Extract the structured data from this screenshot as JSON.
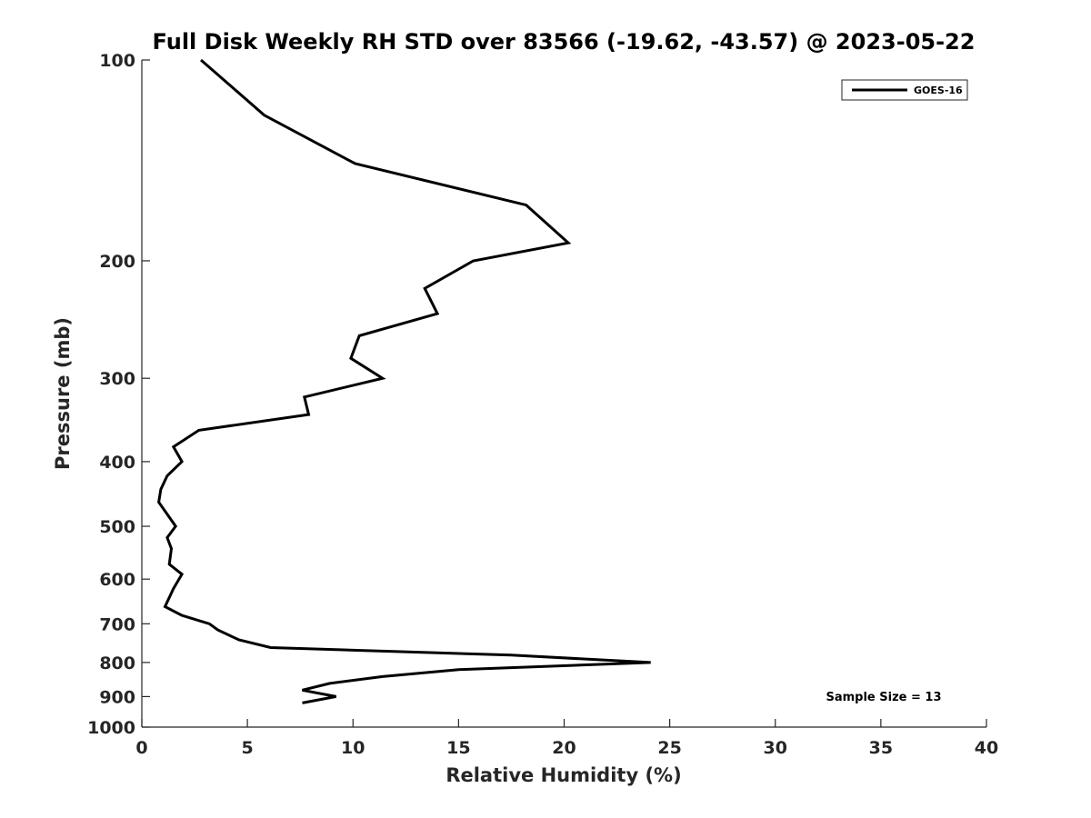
{
  "chart_data": {
    "type": "line",
    "title": "Full Disk Weekly RH STD over 83566 (-19.62, -43.57) @ 2023-05-22",
    "xlabel": "Relative Humidity (%)",
    "ylabel": "Pressure (mb)",
    "xlim": [
      0,
      40
    ],
    "ylim": [
      100,
      1000
    ],
    "y_scale": "log",
    "y_reversed": true,
    "xticks": [
      0,
      5,
      10,
      15,
      20,
      25,
      30,
      35,
      40
    ],
    "xtick_labels": [
      "0",
      "5",
      "10",
      "15",
      "20",
      "25",
      "30",
      "35",
      "40"
    ],
    "yticks": [
      100,
      200,
      300,
      400,
      500,
      600,
      700,
      800,
      900,
      1000
    ],
    "ytick_labels": [
      "100",
      "200",
      "300",
      "400",
      "500",
      "600",
      "700",
      "800",
      "900",
      "1000"
    ],
    "grid": false,
    "legend_position": "top-right",
    "series": [
      {
        "name": "GOES-16",
        "color": "#000000",
        "points": [
          [
            2.8,
            100
          ],
          [
            5.8,
            121
          ],
          [
            10.1,
            143
          ],
          [
            18.2,
            165
          ],
          [
            20.2,
            188
          ],
          [
            15.7,
            200
          ],
          [
            13.4,
            220
          ],
          [
            14.0,
            240
          ],
          [
            10.3,
            259
          ],
          [
            9.9,
            280
          ],
          [
            11.4,
            300
          ],
          [
            7.7,
            320
          ],
          [
            7.9,
            340
          ],
          [
            2.7,
            359
          ],
          [
            1.5,
            380
          ],
          [
            1.9,
            400
          ],
          [
            1.2,
            420
          ],
          [
            0.9,
            440
          ],
          [
            0.8,
            460
          ],
          [
            1.6,
            500
          ],
          [
            1.2,
            520
          ],
          [
            1.4,
            540
          ],
          [
            1.3,
            570
          ],
          [
            1.9,
            590
          ],
          [
            1.5,
            620
          ],
          [
            1.1,
            660
          ],
          [
            1.9,
            680
          ],
          [
            3.2,
            700
          ],
          [
            3.6,
            715
          ],
          [
            4.6,
            740
          ],
          [
            6.1,
            760
          ],
          [
            17.5,
            780
          ],
          [
            24.1,
            800
          ],
          [
            15.0,
            820
          ],
          [
            11.4,
            840
          ],
          [
            8.9,
            860
          ],
          [
            7.6,
            880
          ],
          [
            9.2,
            900
          ],
          [
            7.6,
            920
          ]
        ]
      }
    ],
    "annotations": [
      "Sample Size = 13"
    ]
  }
}
